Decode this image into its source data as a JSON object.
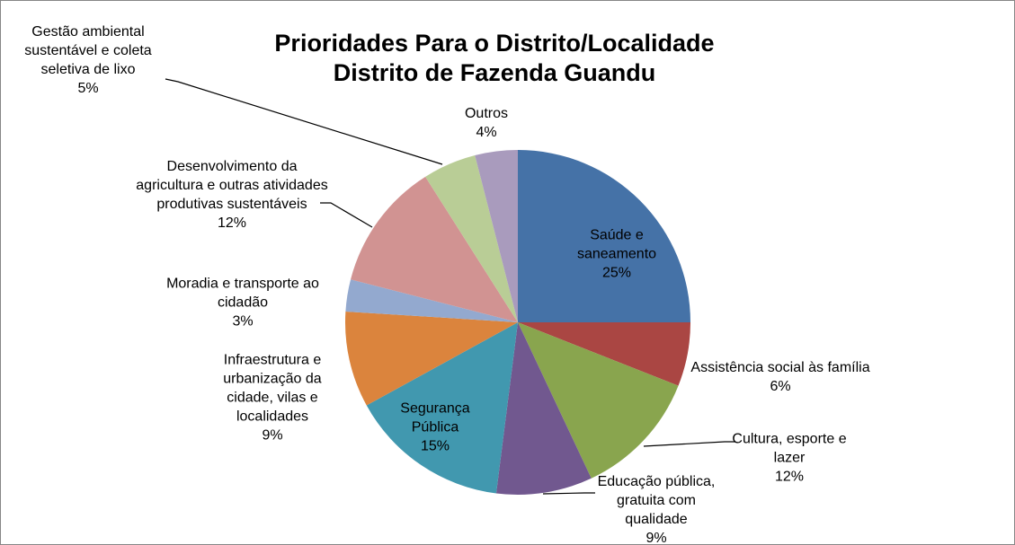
{
  "chart_data": {
    "type": "pie",
    "title": [
      "Prioridades Para o Distrito/Localidade",
      "Distrito de Fazenda Guandu"
    ],
    "categories": [
      "Saúde e saneamento",
      "Assistência social às família",
      "Cultura, esporte e lazer",
      "Educação pública, gratuita com qualidade",
      "Segurança Pública",
      "Infraestrutura e urbanização da cidade, vilas e localidades",
      "Moradia e transporte ao cidadão",
      "Desenvolvimento da agricultura e outras atividades produtivas sustentáveis",
      "Gestão ambiental sustentável e coleta seletiva de lixo",
      "Outros"
    ],
    "values": [
      25,
      6,
      12,
      9,
      15,
      9,
      3,
      12,
      5,
      4
    ],
    "value_labels": [
      "25%",
      "6%",
      "12%",
      "9%",
      "15%",
      "9%",
      "3%",
      "12%",
      "5%",
      "4%"
    ],
    "colors": [
      "#4572a7",
      "#aa4643",
      "#89a54e",
      "#71588f",
      "#4198af",
      "#db843d",
      "#93a9cf",
      "#d19392",
      "#b9cd96",
      "#a99bbd"
    ]
  }
}
